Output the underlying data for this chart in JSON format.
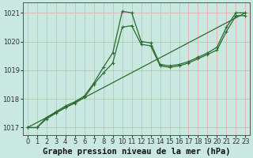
{
  "bg_color": "#c8e8e0",
  "grid_color": "#e8b0b0",
  "line_color": "#2d6a2d",
  "xlabel": "Graphe pression niveau de la mer (hPa)",
  "xlim": [
    -0.5,
    23.5
  ],
  "ylim": [
    1016.75,
    1021.35
  ],
  "yticks": [
    1017,
    1018,
    1019,
    1020,
    1021
  ],
  "xticks": [
    0,
    1,
    2,
    3,
    4,
    5,
    6,
    7,
    8,
    9,
    10,
    11,
    12,
    13,
    14,
    15,
    16,
    17,
    18,
    19,
    20,
    21,
    22,
    23
  ],
  "series": [
    {
      "x": [
        0,
        1,
        2,
        3,
        4,
        5,
        6,
        7,
        8,
        9,
        10,
        11,
        12,
        13,
        14,
        15,
        16,
        17,
        18,
        19,
        20,
        21,
        22,
        23
      ],
      "y": [
        1017.0,
        1017.0,
        1017.35,
        1017.55,
        1017.75,
        1017.9,
        1018.1,
        1018.55,
        1019.1,
        1019.6,
        1021.05,
        1021.0,
        1020.0,
        1019.95,
        1019.2,
        1019.15,
        1019.2,
        1019.3,
        1019.45,
        1019.6,
        1019.8,
        1020.5,
        1021.0,
        1021.0
      ]
    },
    {
      "x": [
        0,
        1,
        2,
        3,
        4,
        5,
        6,
        7,
        8,
        9,
        10,
        11,
        12,
        13,
        14,
        15,
        16,
        17,
        18,
        19,
        20,
        21,
        22,
        23
      ],
      "y": [
        1017.0,
        1017.0,
        1017.3,
        1017.5,
        1017.7,
        1017.85,
        1018.05,
        1018.5,
        1018.9,
        1019.25,
        1020.5,
        1020.55,
        1019.9,
        1019.85,
        1019.15,
        1019.1,
        1019.15,
        1019.25,
        1019.4,
        1019.55,
        1019.7,
        1020.35,
        1020.9,
        1020.9
      ]
    },
    {
      "x": [
        0,
        23
      ],
      "y": [
        1017.0,
        1021.0
      ]
    }
  ],
  "marker": "+",
  "markersize": 3.5,
  "linewidth": 0.9,
  "xlabel_fontsize": 7.5,
  "tick_fontsize": 6.0,
  "tick_color": "#333333",
  "spine_color": "#555555"
}
